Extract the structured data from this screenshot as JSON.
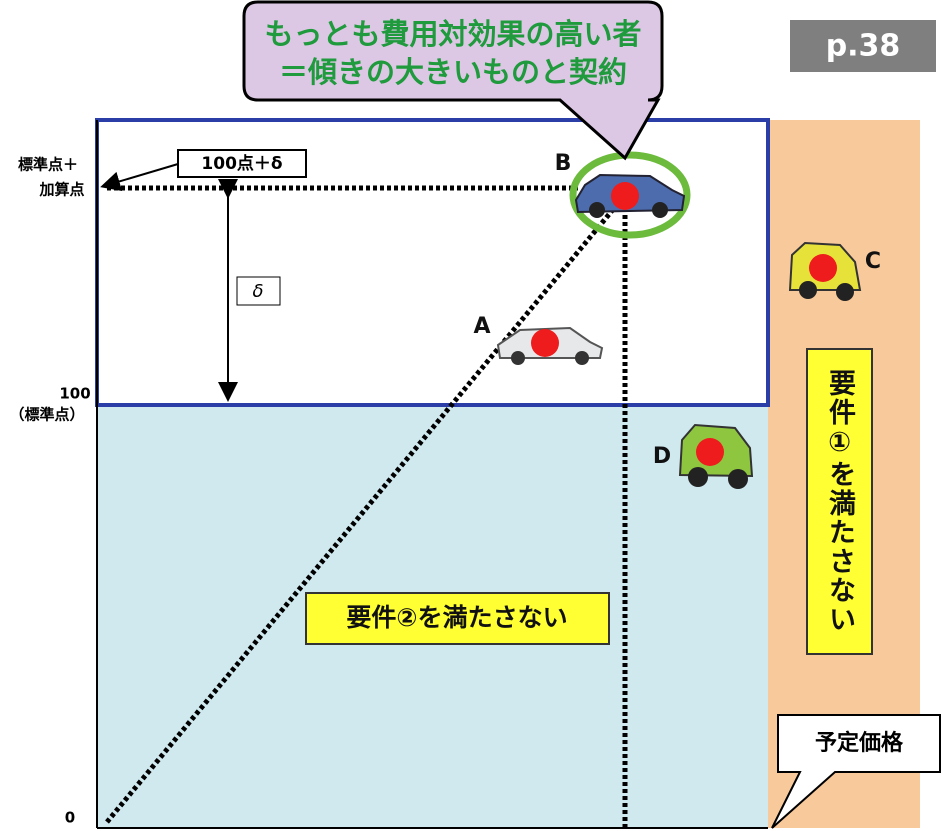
{
  "callout": {
    "lines": [
      "もっとも費用対効果の高い者",
      "＝傾きの大きいものと契約"
    ]
  },
  "page_label": "p.38",
  "y_axis": {
    "top_label": [
      "標準点＋",
      "加算点"
    ],
    "standard_value": "100",
    "standard_label": "（標準点）",
    "origin": "0"
  },
  "score_box": "100点＋δ",
  "delta_label": "δ",
  "bidders": [
    "A",
    "B",
    "C",
    "D"
  ],
  "region_requirement2": "要件②を満たさない",
  "region_requirement1": "要件①を満たさない",
  "planned_price": "予定価格"
}
